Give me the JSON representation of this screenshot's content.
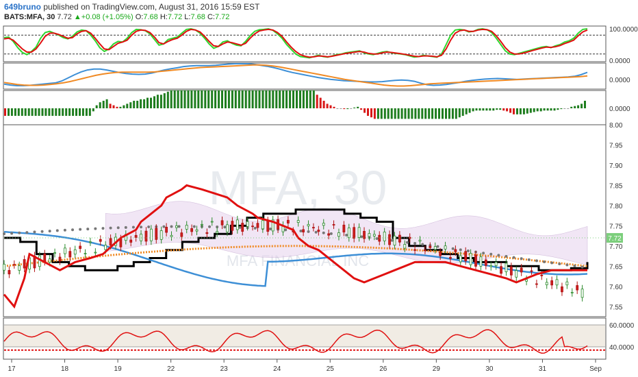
{
  "header": {
    "user": "649bruno",
    "published": "published on TradingView.com, August 31, 2016 15:59 EST",
    "symbol": "BATS:MFA, 30",
    "last": "7.72",
    "up_arrow": "▲",
    "change": "+0.08 (+1.05%)",
    "o_label": "O:",
    "o_val": "7.68",
    "h_label": "H:",
    "h_val": "7.72",
    "l_label": "L:",
    "l_val": "7.68",
    "c_label": "C:",
    "c_val": "7.72"
  },
  "watermark": {
    "symbol": "MFA, 30",
    "name": "MFA FINANCIAL INC"
  },
  "colors": {
    "green": "#2fd62f",
    "red": "#e01010",
    "blue": "#3d8fd6",
    "orange": "#f08a24",
    "up_bar": "#1e7d1e",
    "down_bar": "#d81818",
    "black": "#000000",
    "cloud": "#e6d3ee",
    "rsi_band": "#f1ece4",
    "price_tag": "#7ccf7c"
  },
  "chart_data": [
    {
      "type": "line",
      "panel": "stochastic",
      "ylim": [
        0,
        100
      ],
      "y_ticks": [
        "100.0000",
        "0.0000"
      ],
      "series": [
        {
          "values": [
            72,
            74,
            60,
            40,
            25,
            18,
            28,
            42,
            70,
            88,
            92,
            86,
            80,
            72,
            68,
            76,
            90,
            96,
            94,
            80,
            62,
            40,
            28,
            36,
            52,
            60,
            58,
            70,
            88,
            98,
            97,
            94,
            84,
            66,
            48,
            52,
            66,
            70,
            74,
            86,
            98,
            100,
            96,
            86,
            70,
            52,
            38,
            44,
            58,
            62,
            54,
            48,
            46,
            60,
            78,
            92,
            97,
            98,
            100,
            95,
            84,
            70,
            50,
            35,
            20,
            12,
            10,
            8,
            12,
            16,
            12,
            10,
            14,
            18,
            20,
            24,
            26,
            28,
            30,
            24,
            20,
            18,
            22,
            26,
            28,
            24,
            22,
            20,
            18,
            14,
            10,
            12,
            16,
            14,
            12,
            10,
            20,
            50,
            80,
            96,
            98,
            96,
            90,
            92,
            98,
            100,
            97,
            88,
            70,
            50,
            30,
            20,
            18,
            22,
            26,
            30,
            34,
            38,
            42,
            44,
            40,
            46,
            50,
            58,
            62,
            70,
            86,
            98,
            100
          ]
        },
        {
          "values": [
            68,
            70,
            64,
            50,
            36,
            26,
            26,
            36,
            55,
            76,
            86,
            86,
            82,
            76,
            70,
            72,
            84,
            92,
            94,
            86,
            70,
            52,
            36,
            34,
            44,
            54,
            58,
            64,
            80,
            92,
            96,
            95,
            88,
            74,
            56,
            52,
            60,
            66,
            70,
            80,
            92,
            98,
            96,
            90,
            76,
            60,
            46,
            44,
            52,
            58,
            56,
            52,
            48,
            54,
            70,
            84,
            93,
            96,
            98,
            96,
            88,
            76,
            58,
            42,
            28,
            18,
            13,
            10,
            11,
            14,
            13,
            11,
            13,
            16,
            19,
            22,
            24,
            26,
            28,
            26,
            22,
            20,
            20,
            24,
            26,
            25,
            23,
            21,
            19,
            16,
            13,
            12,
            14,
            14,
            13,
            11,
            16,
            36,
            64,
            86,
            94,
            96,
            92,
            92,
            96,
            98,
            97,
            92,
            78,
            60,
            40,
            26,
            20,
            20,
            23,
            27,
            31,
            35,
            39,
            42,
            41,
            43,
            47,
            53,
            58,
            64,
            78,
            90,
            96
          ]
        }
      ],
      "levels": [
        80,
        20
      ]
    },
    {
      "type": "line",
      "panel": "macd_lines",
      "y_ticks": [
        "0.0000"
      ],
      "series": [
        {
          "values": [
            -30,
            -36,
            -40,
            -40,
            -38,
            -34,
            -30,
            -26,
            -22,
            -10,
            10,
            30,
            48,
            60,
            66,
            66,
            60,
            52,
            44,
            38,
            34,
            32,
            34,
            40,
            50,
            60,
            68,
            74,
            82,
            86,
            88,
            88,
            88,
            90,
            94,
            98,
            100,
            100,
            100,
            96,
            90,
            84,
            76,
            66,
            54,
            44,
            36,
            28,
            20,
            12,
            6,
            0,
            -4,
            -8,
            -10,
            -12,
            -14,
            -16,
            -16,
            -14,
            -10,
            -6,
            -4,
            -6,
            -12,
            -24,
            -34,
            -38,
            -36,
            -32,
            -26,
            -20,
            -12,
            -6,
            -2,
            2,
            4,
            6,
            4,
            2,
            0,
            2,
            4,
            6,
            8,
            10,
            12,
            14,
            16,
            20,
            30,
            45
          ]
        },
        {
          "values": [
            -20,
            -26,
            -32,
            -36,
            -38,
            -38,
            -36,
            -32,
            -28,
            -22,
            -14,
            -4,
            6,
            16,
            26,
            34,
            40,
            44,
            46,
            46,
            46,
            46,
            46,
            48,
            52,
            56,
            60,
            64,
            68,
            72,
            76,
            78,
            80,
            82,
            84,
            86,
            88,
            90,
            92,
            92,
            90,
            86,
            80,
            72,
            64,
            56,
            48,
            40,
            32,
            24,
            16,
            8,
            0,
            -6,
            -12,
            -18,
            -24,
            -30,
            -36,
            -40,
            -42,
            -42,
            -40,
            -36,
            -32,
            -28,
            -26,
            -24,
            -22,
            -20,
            -18,
            -16,
            -14,
            -12,
            -10,
            -8,
            -6,
            -4,
            -2,
            0,
            2,
            4,
            6,
            8,
            10,
            12,
            14,
            16,
            18,
            22
          ]
        }
      ]
    },
    {
      "type": "bar",
      "panel": "macd_histogram",
      "y_ticks": [
        "0.0000"
      ],
      "values": [
        -10,
        -10,
        -10,
        -10,
        -10,
        -10,
        -10,
        -10,
        -10,
        -10,
        -10,
        -10,
        -10,
        -10,
        -10,
        -10,
        -10,
        -10,
        -10,
        -10,
        -10,
        -10,
        -10,
        -10,
        -10,
        -10,
        -4,
        4,
        8,
        10,
        12,
        6,
        4,
        2,
        2,
        4,
        6,
        8,
        10,
        10,
        12,
        12,
        14,
        14,
        16,
        18,
        18,
        20,
        22,
        24,
        24,
        24,
        24,
        24,
        24,
        24,
        24,
        24,
        24,
        24,
        24,
        24,
        24,
        24,
        24,
        24,
        24,
        24,
        24,
        24,
        24,
        24,
        24,
        24,
        24,
        24,
        24,
        24,
        24,
        24,
        24,
        24,
        24,
        24,
        24,
        24,
        24,
        24,
        24,
        24,
        24,
        24,
        18,
        14,
        10,
        6,
        4,
        2,
        0,
        0,
        -1,
        -1,
        0,
        1,
        2,
        -2,
        -6,
        -10,
        -12,
        -14,
        -14,
        -14,
        -14,
        -14,
        -14,
        -14,
        -14,
        -14,
        -14,
        -14,
        -14,
        -14,
        -14,
        -14,
        -14,
        -14,
        -14,
        -14,
        -14,
        -14,
        -14,
        -14,
        -14,
        -14,
        -12,
        -10,
        -8,
        -6,
        -4,
        -3,
        -3,
        -3,
        -3,
        -3,
        -3,
        -2,
        -2,
        -3,
        -4,
        -6,
        -8,
        -8,
        -8,
        -8,
        -7,
        -6,
        -5,
        -4,
        -4,
        -3,
        -3,
        -3,
        -3,
        -2,
        -1,
        0,
        0,
        2,
        3,
        4,
        6,
        10
      ],
      "colors": "green/red alternating by momentum"
    },
    {
      "type": "line",
      "panel": "price",
      "ylim": [
        7.525,
        8.0
      ],
      "y_ticks": [
        "8.00",
        "7.95",
        "7.90",
        "7.85",
        "7.80",
        "7.75",
        "7.70",
        "7.65",
        "7.60",
        "7.55"
      ],
      "x_ticks": [
        "17",
        "18",
        "19",
        "22",
        "23",
        "24",
        "25",
        "26",
        "29",
        "30",
        "31",
        "Sep"
      ],
      "last_price_tag": "7.72",
      "series": [
        {
          "name_hidden": "zigzag",
          "x": [
            0,
            4,
            8,
            10,
            22,
            28,
            34,
            39,
            46,
            52,
            54,
            58,
            62,
            64,
            70,
            72,
            78,
            83,
            88,
            92,
            98,
            100,
            106,
            110,
            114,
            116,
            120,
            124,
            126,
            130,
            134,
            136,
            138,
            142,
            146,
            150,
            154,
            158,
            162,
            166,
            170,
            174,
            180,
            186,
            192,
            198,
            202,
            206,
            210,
            216,
            222,
            226,
            230
          ],
          "values": [
            7.58,
            7.55,
            7.62,
            7.68,
            7.64,
            7.66,
            7.67,
            7.68,
            7.72,
            7.74,
            7.76,
            7.78,
            7.8,
            7.82,
            7.84,
            7.85,
            7.84,
            7.83,
            7.82,
            7.8,
            7.78,
            7.77,
            7.76,
            7.75,
            7.74,
            7.72,
            7.7,
            7.69,
            7.68,
            7.66,
            7.64,
            7.63,
            7.62,
            7.61,
            7.62,
            7.63,
            7.64,
            7.65,
            7.66,
            7.66,
            7.66,
            7.66,
            7.65,
            7.64,
            7.63,
            7.62,
            7.61,
            7.62,
            7.63,
            7.64,
            7.64,
            7.64,
            7.64
          ]
        }
      ]
    },
    {
      "type": "line",
      "panel": "rsi",
      "ylim": [
        30,
        65
      ],
      "y_ticks": [
        "60.0000",
        "40.0000"
      ],
      "levels": [
        60,
        40,
        37
      ]
    }
  ]
}
